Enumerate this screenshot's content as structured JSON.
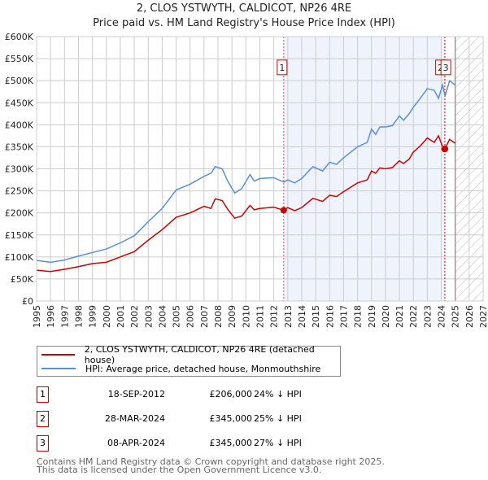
{
  "chart_data": {
    "type": "line",
    "title": "2, CLOS YSTWYTH, CALDICOT, NP26 4RE",
    "subtitle": "Price paid vs. HM Land Registry's House Price Index (HPI)",
    "xlim": [
      1995,
      2027
    ],
    "ylim": [
      0,
      600000
    ],
    "x_ticks": [
      "1995",
      "1996",
      "1997",
      "1998",
      "1999",
      "2000",
      "2001",
      "2002",
      "2003",
      "2004",
      "2005",
      "2006",
      "2007",
      "2008",
      "2009",
      "2010",
      "2011",
      "2012",
      "2013",
      "2014",
      "2015",
      "2016",
      "2017",
      "2018",
      "2019",
      "2020",
      "2021",
      "2022",
      "2023",
      "2024",
      "2025",
      "2026",
      "2027"
    ],
    "y_ticks": [
      {
        "v": 0,
        "l": "£0"
      },
      {
        "v": 50000,
        "l": "£50K"
      },
      {
        "v": 100000,
        "l": "£100K"
      },
      {
        "v": 150000,
        "l": "£150K"
      },
      {
        "v": 200000,
        "l": "£200K"
      },
      {
        "v": 250000,
        "l": "£250K"
      },
      {
        "v": 300000,
        "l": "£300K"
      },
      {
        "v": 350000,
        "l": "£350K"
      },
      {
        "v": 400000,
        "l": "£400K"
      },
      {
        "v": 450000,
        "l": "£450K"
      },
      {
        "v": 500000,
        "l": "£500K"
      },
      {
        "v": 550000,
        "l": "£550K"
      },
      {
        "v": 600000,
        "l": "£600K"
      }
    ],
    "grid": true,
    "shaded_range": [
      2012.71,
      2024.27
    ],
    "forecast_range": [
      2025.0,
      2027
    ],
    "series": [
      {
        "name": "2, CLOS YSTWYTH, CALDICOT, NP26 4RE (detached house)",
        "color": "#cc0000",
        "x": [
          1995,
          1996,
          1997,
          1998,
          1999,
          2000,
          2001,
          2002,
          2003,
          2004,
          2005,
          2006,
          2007,
          2007.5,
          2007.8,
          2008.3,
          2008.7,
          2009.2,
          2009.7,
          2010.3,
          2010.6,
          2011,
          2012,
          2012.71,
          2013,
          2013.5,
          2014,
          2014.8,
          2015.5,
          2016,
          2016.5,
          2017,
          2018,
          2018.7,
          2019,
          2019.3,
          2019.6,
          2020,
          2020.5,
          2021,
          2021.3,
          2021.7,
          2022,
          2022.5,
          2023,
          2023.5,
          2023.8,
          2024.1,
          2024.27,
          2024.6,
          2025
        ],
        "values": [
          70000,
          67000,
          72000,
          78000,
          85000,
          88000,
          100000,
          112000,
          138000,
          162000,
          190000,
          200000,
          215000,
          210000,
          232000,
          228000,
          208000,
          188000,
          193000,
          217000,
          207000,
          210000,
          213000,
          206000,
          212000,
          205000,
          212000,
          233000,
          226000,
          240000,
          237000,
          248000,
          268000,
          275000,
          295000,
          290000,
          302000,
          300000,
          303000,
          318000,
          312000,
          322000,
          338000,
          352000,
          370000,
          360000,
          375000,
          350000,
          345000,
          367000,
          358000
        ]
      },
      {
        "name": "HPI: Average price, detached house, Monmouthshire",
        "color": "#5b8fd4",
        "x": [
          1995,
          1996,
          1997,
          1998,
          1999,
          2000,
          2001,
          2002,
          2003,
          2004,
          2005,
          2006,
          2007,
          2007.5,
          2007.8,
          2008.3,
          2008.7,
          2009.2,
          2009.7,
          2010.3,
          2010.6,
          2011,
          2012,
          2012.71,
          2013,
          2013.5,
          2014,
          2014.8,
          2015.5,
          2016,
          2016.5,
          2017,
          2018,
          2018.7,
          2019,
          2019.3,
          2019.6,
          2020,
          2020.5,
          2021,
          2021.3,
          2021.7,
          2022,
          2022.5,
          2023,
          2023.5,
          2023.8,
          2024.1,
          2024.27,
          2024.6,
          2025
        ],
        "values": [
          92000,
          88000,
          93000,
          102000,
          110000,
          118000,
          132000,
          148000,
          180000,
          210000,
          252000,
          265000,
          283000,
          290000,
          305000,
          300000,
          272000,
          245000,
          255000,
          287000,
          272000,
          278000,
          280000,
          270000,
          275000,
          268000,
          278000,
          305000,
          295000,
          315000,
          310000,
          325000,
          350000,
          360000,
          390000,
          378000,
          395000,
          395000,
          398000,
          420000,
          410000,
          425000,
          440000,
          460000,
          482000,
          478000,
          460000,
          490000,
          465000,
          500000,
          490000
        ]
      }
    ],
    "sales": [
      {
        "id": "1",
        "x": 2012.71,
        "date": "18-SEP-2012",
        "price": 206000,
        "price_label": "£206,000",
        "hpi": "24% ↓ HPI"
      },
      {
        "id": "2",
        "x": 2024.24,
        "date": "28-MAR-2024",
        "price": 345000,
        "price_label": "£345,000",
        "hpi": "25% ↓ HPI"
      },
      {
        "id": "3",
        "x": 2024.27,
        "date": "08-APR-2024",
        "price": 345000,
        "price_label": "£345,000",
        "hpi": "27% ↓ HPI"
      }
    ]
  },
  "footer": [
    "Contains HM Land Registry data © Crown copyright and database right 2025.",
    "This data is licensed under the Open Government Licence v3.0."
  ]
}
